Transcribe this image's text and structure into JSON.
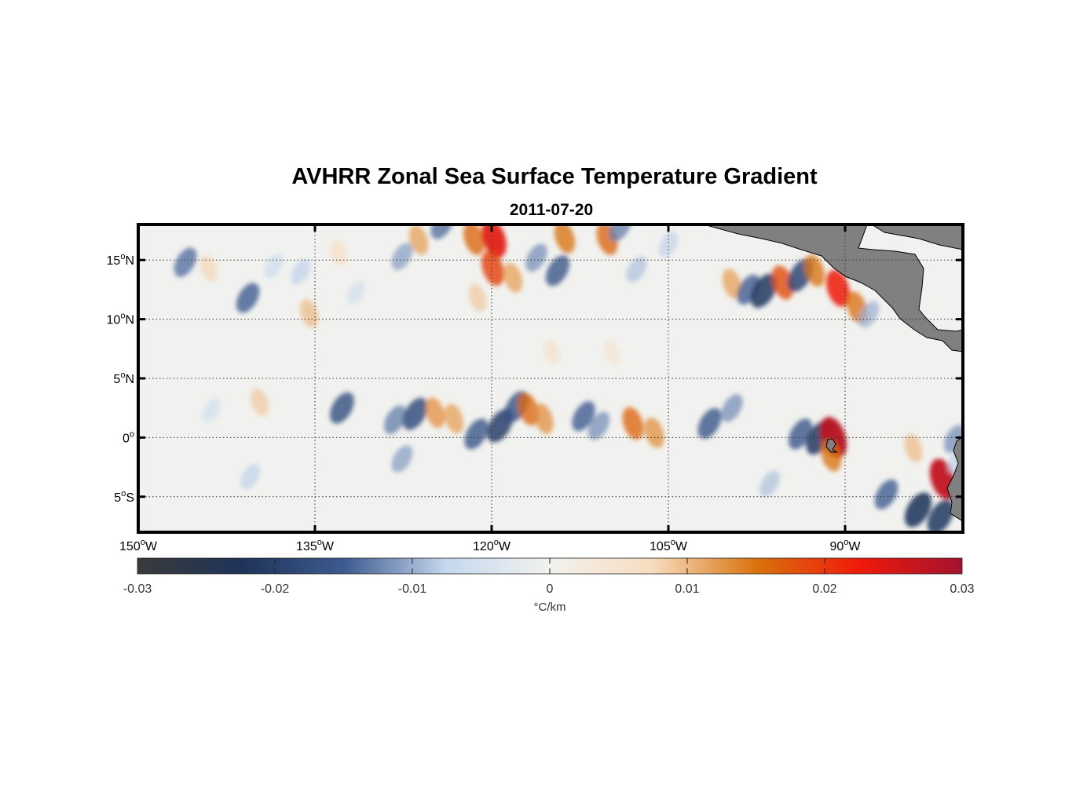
{
  "figure": {
    "title": "AVHRR Zonal Sea Surface Temperature Gradient",
    "subtitle": "2011-07-20",
    "map": {
      "lon_range": [
        -150,
        -80
      ],
      "lat_range": [
        -8,
        18
      ],
      "grid": true,
      "land_color": "#808080",
      "lon_ticks": [
        {
          "value": -150,
          "deg": "150",
          "hemi": "W"
        },
        {
          "value": -135,
          "deg": "135",
          "hemi": "W"
        },
        {
          "value": -120,
          "deg": "120",
          "hemi": "W"
        },
        {
          "value": -105,
          "deg": "105",
          "hemi": "W"
        },
        {
          "value": -90,
          "deg": "90",
          "hemi": "W"
        }
      ],
      "lat_ticks": [
        {
          "value": 15,
          "deg": "15",
          "hemi": "N"
        },
        {
          "value": 10,
          "deg": "10",
          "hemi": "N"
        },
        {
          "value": 5,
          "deg": "5",
          "hemi": "N"
        },
        {
          "value": 0,
          "deg": "0",
          "hemi": ""
        },
        {
          "value": -5,
          "deg": "5",
          "hemi": "S"
        }
      ]
    },
    "colorbar": {
      "range": [
        -0.03,
        0.03
      ],
      "ticks": [
        {
          "value": -0.03,
          "label": "-0.03"
        },
        {
          "value": -0.02,
          "label": "-0.02"
        },
        {
          "value": -0.01,
          "label": "-0.01"
        },
        {
          "value": 0,
          "label": "0"
        },
        {
          "value": 0.01,
          "label": "0.01"
        },
        {
          "value": 0.02,
          "label": "0.02"
        },
        {
          "value": 0.03,
          "label": "0.03"
        }
      ],
      "unit_label": "°C/km",
      "colors": [
        "#3a3a3c",
        "#1f3358",
        "#3d5a8f",
        "#c6d8ee",
        "#f2f2ee",
        "#f7dcbf",
        "#d9730d",
        "#f01a0a",
        "#a3122e"
      ]
    },
    "features": [
      {
        "lon": -146.0,
        "lat": 14.8,
        "value": -0.014
      },
      {
        "lon": -144.0,
        "lat": 14.3,
        "value": 0.008
      },
      {
        "lon": -140.7,
        "lat": 11.8,
        "value": -0.015
      },
      {
        "lon": -138.5,
        "lat": 14.5,
        "value": -0.007
      },
      {
        "lon": -136.2,
        "lat": 14.0,
        "value": -0.008
      },
      {
        "lon": -135.5,
        "lat": 10.5,
        "value": 0.01
      },
      {
        "lon": -133.0,
        "lat": 15.6,
        "value": 0.007
      },
      {
        "lon": -131.5,
        "lat": 12.2,
        "value": -0.006
      },
      {
        "lon": -127.6,
        "lat": 15.3,
        "value": -0.011
      },
      {
        "lon": -126.2,
        "lat": 16.7,
        "value": 0.012
      },
      {
        "lon": -124.2,
        "lat": 18.0,
        "value": -0.014
      },
      {
        "lon": -121.5,
        "lat": 16.8,
        "value": 0.016
      },
      {
        "lon": -121.2,
        "lat": 11.8,
        "value": 0.009
      },
      {
        "lon": -119.8,
        "lat": 16.8,
        "value": 0.024
      },
      {
        "lon": -119.9,
        "lat": 14.3,
        "value": 0.019
      },
      {
        "lon": -118.2,
        "lat": 13.5,
        "value": 0.012
      },
      {
        "lon": -116.2,
        "lat": 15.2,
        "value": -0.012
      },
      {
        "lon": -114.4,
        "lat": 14.1,
        "value": -0.016
      },
      {
        "lon": -113.8,
        "lat": 16.9,
        "value": 0.015
      },
      {
        "lon": -110.2,
        "lat": 16.8,
        "value": 0.016
      },
      {
        "lon": -109.1,
        "lat": 17.8,
        "value": -0.013
      },
      {
        "lon": -107.7,
        "lat": 14.2,
        "value": -0.009
      },
      {
        "lon": -105.0,
        "lat": 16.3,
        "value": -0.008
      },
      {
        "lon": -99.6,
        "lat": 13.0,
        "value": 0.012
      },
      {
        "lon": -98.2,
        "lat": 12.5,
        "value": -0.015
      },
      {
        "lon": -96.9,
        "lat": 12.4,
        "value": -0.021
      },
      {
        "lon": -95.3,
        "lat": 13.1,
        "value": 0.018
      },
      {
        "lon": -93.8,
        "lat": 13.7,
        "value": -0.019
      },
      {
        "lon": -92.6,
        "lat": 14.1,
        "value": 0.015
      },
      {
        "lon": -90.6,
        "lat": 12.6,
        "value": 0.022
      },
      {
        "lon": -89.0,
        "lat": 11.0,
        "value": 0.015
      },
      {
        "lon": -88.0,
        "lat": 10.4,
        "value": -0.01
      },
      {
        "lon": -132.7,
        "lat": 2.5,
        "value": -0.017
      },
      {
        "lon": -128.2,
        "lat": 1.5,
        "value": -0.013
      },
      {
        "lon": -126.5,
        "lat": 2.0,
        "value": -0.018
      },
      {
        "lon": -124.8,
        "lat": 2.1,
        "value": 0.013
      },
      {
        "lon": -123.2,
        "lat": 1.6,
        "value": 0.012
      },
      {
        "lon": -127.6,
        "lat": -1.8,
        "value": -0.011
      },
      {
        "lon": -121.3,
        "lat": 0.3,
        "value": -0.016
      },
      {
        "lon": -119.3,
        "lat": 1.0,
        "value": -0.02
      },
      {
        "lon": -117.9,
        "lat": 2.6,
        "value": -0.017
      },
      {
        "lon": -116.9,
        "lat": 2.4,
        "value": 0.016
      },
      {
        "lon": -115.6,
        "lat": 1.6,
        "value": 0.013
      },
      {
        "lon": -112.2,
        "lat": 1.8,
        "value": -0.015
      },
      {
        "lon": -110.9,
        "lat": 1.0,
        "value": -0.012
      },
      {
        "lon": -108.0,
        "lat": 1.2,
        "value": 0.016
      },
      {
        "lon": -106.2,
        "lat": 0.4,
        "value": 0.013
      },
      {
        "lon": -101.5,
        "lat": 1.2,
        "value": -0.016
      },
      {
        "lon": -99.6,
        "lat": 2.5,
        "value": -0.012
      },
      {
        "lon": -93.8,
        "lat": 0.3,
        "value": -0.016
      },
      {
        "lon": -92.2,
        "lat": 0.0,
        "value": -0.021
      },
      {
        "lon": -91.0,
        "lat": 0.0,
        "value": 0.028
      },
      {
        "lon": -91.2,
        "lat": -1.5,
        "value": 0.015
      },
      {
        "lon": -86.5,
        "lat": -4.8,
        "value": -0.015
      },
      {
        "lon": -83.8,
        "lat": -6.1,
        "value": -0.022
      },
      {
        "lon": -81.9,
        "lat": -6.7,
        "value": -0.021
      },
      {
        "lon": -81.7,
        "lat": -3.5,
        "value": 0.027
      },
      {
        "lon": -80.7,
        "lat": -0.1,
        "value": -0.012
      },
      {
        "lon": -80.5,
        "lat": -2.0,
        "value": -0.008
      },
      {
        "lon": -84.2,
        "lat": -0.9,
        "value": 0.01
      },
      {
        "lon": -96.4,
        "lat": -3.9,
        "value": -0.009
      },
      {
        "lon": -114.9,
        "lat": 7.2,
        "value": 0.006
      },
      {
        "lon": -109.8,
        "lat": 7.2,
        "value": 0.005
      },
      {
        "lon": -139.7,
        "lat": 3.0,
        "value": 0.009
      },
      {
        "lon": -143.8,
        "lat": 2.3,
        "value": -0.006
      },
      {
        "lon": -140.5,
        "lat": -3.3,
        "value": -0.008
      }
    ]
  }
}
